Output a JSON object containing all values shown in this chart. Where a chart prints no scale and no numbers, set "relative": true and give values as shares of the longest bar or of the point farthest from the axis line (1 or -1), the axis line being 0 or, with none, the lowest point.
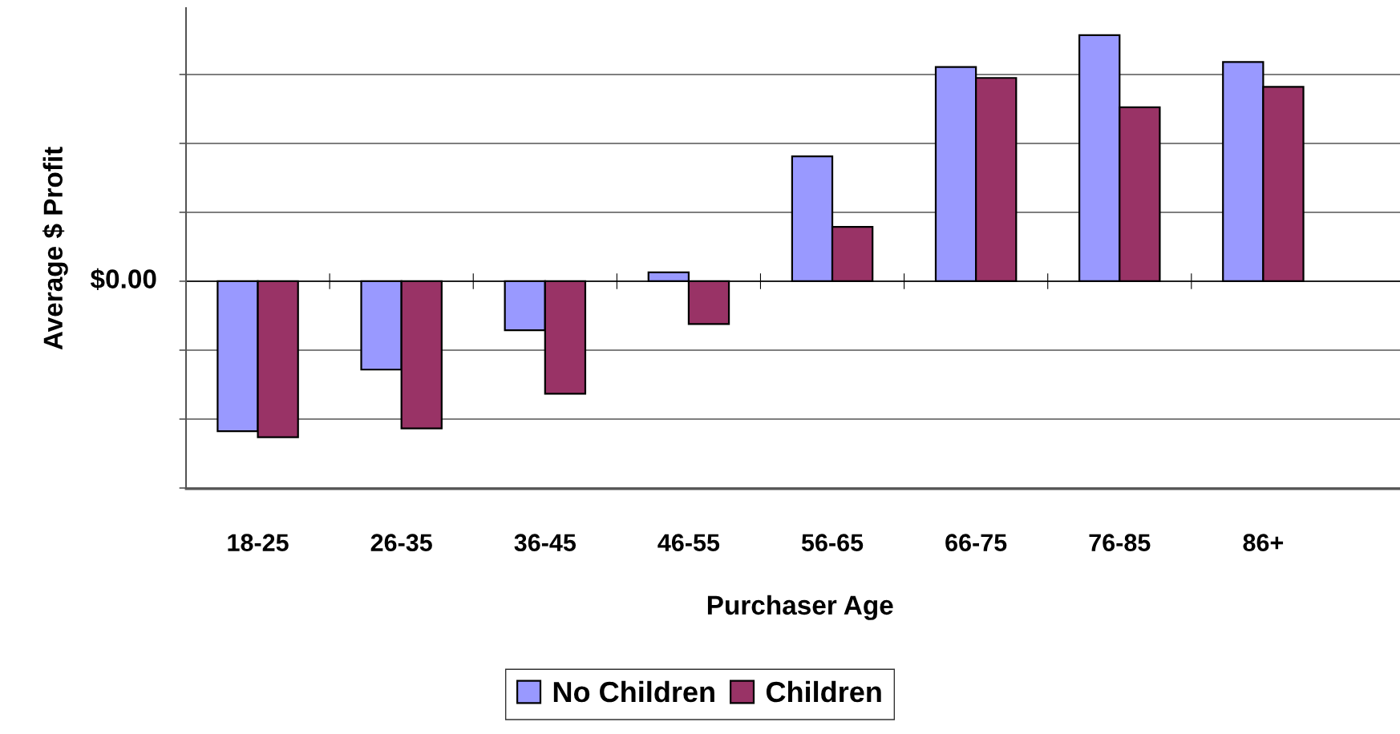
{
  "chart_data": {
    "type": "bar",
    "relative": true,
    "xlabel": "Purchaser Age",
    "ylabel": "Average $ Profit",
    "categories": [
      "18-25",
      "26-35",
      "36-45",
      "46-55",
      "56-65",
      "66-75",
      "76-85",
      "86+"
    ],
    "series": [
      {
        "name": "No Children",
        "color": "#9999ff",
        "values": [
          -0.609,
          -0.359,
          -0.199,
          0.036,
          0.507,
          0.87,
          1,
          0.891
        ]
      },
      {
        "name": "Children",
        "color": "#993366",
        "values": [
          -0.634,
          -0.598,
          -0.457,
          -0.174,
          0.221,
          0.826,
          0.707,
          0.79
        ]
      }
    ],
    "annotations": [
      "$0.00"
    ],
    "grid": "y",
    "legend": "bottom"
  }
}
